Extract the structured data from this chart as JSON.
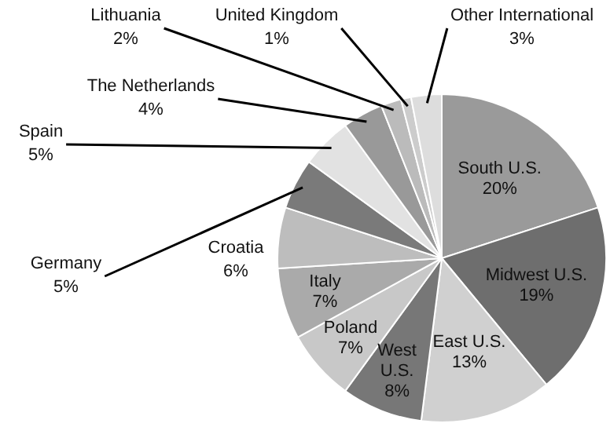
{
  "chart_data": {
    "type": "pie",
    "value_labels": [
      "20%",
      "19%",
      "13%",
      "8%",
      "7%",
      "7%",
      "6%",
      "5%",
      "5%",
      "4%",
      "2%",
      "1%",
      "3%"
    ],
    "categories": [
      "South U.S.",
      "Midwest U.S.",
      "East U.S.",
      "West U.S.",
      "Poland",
      "Italy",
      "Croatia",
      "Germany",
      "Spain",
      "The Netherlands",
      "Lithuania",
      "United Kingdom",
      "Other International"
    ],
    "values": [
      20,
      19,
      13,
      8,
      7,
      7,
      6,
      5,
      5,
      4,
      2,
      1,
      3
    ],
    "colors": [
      "#9a9a9a",
      "#6e6e6e",
      "#d0d0d0",
      "#777777",
      "#c8c8c8",
      "#aaaaaa",
      "#bdbdbd",
      "#7a7a7a",
      "#e2e2e2",
      "#999999",
      "#bbbbbb",
      "#cccccc",
      "#dddddd"
    ]
  }
}
